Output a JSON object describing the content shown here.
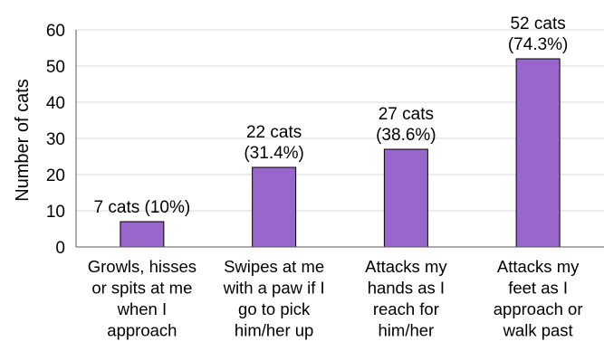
{
  "chart_data": {
    "type": "bar",
    "categories": [
      [
        "Growls, hisses",
        "or spits at me",
        "when I",
        "approach"
      ],
      [
        "Swipes at me",
        "with a paw if I",
        "go to pick",
        "him/her up"
      ],
      [
        "Attacks my",
        "hands as I",
        "reach for",
        "him/her"
      ],
      [
        "Attacks my",
        "feet as I",
        "approach or",
        "walk past"
      ]
    ],
    "values": [
      7,
      22,
      27,
      52
    ],
    "data_labels": [
      [
        "7 cats (10%)"
      ],
      [
        "22 cats",
        "(31.4%)"
      ],
      [
        "27 cats",
        "(38.6%)"
      ],
      [
        "52 cats",
        "(74.3%)"
      ]
    ],
    "title": "",
    "xlabel": "",
    "ylabel": "Number of cats",
    "ylim": [
      0,
      60
    ],
    "yticks": [
      0,
      10,
      20,
      30,
      40,
      50,
      60
    ],
    "grid": true,
    "colors": {
      "bar": "#9966cc",
      "grid": "#d9d9d9",
      "axis": "#595959"
    }
  }
}
